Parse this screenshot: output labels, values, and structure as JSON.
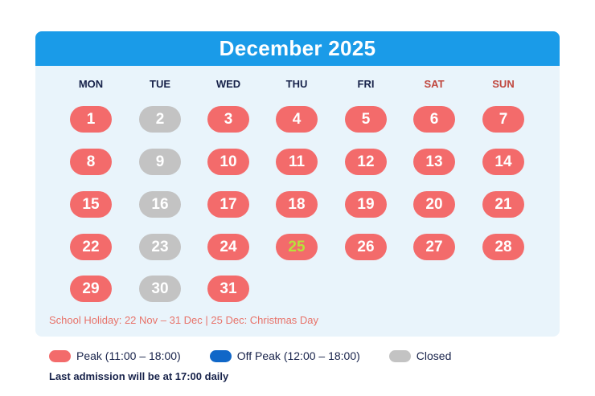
{
  "calendar": {
    "title": "December 2025",
    "weekdays": [
      {
        "label": "MON",
        "weekend": false
      },
      {
        "label": "TUE",
        "weekend": false
      },
      {
        "label": "WED",
        "weekend": false
      },
      {
        "label": "THU",
        "weekend": false
      },
      {
        "label": "FRI",
        "weekend": false
      },
      {
        "label": "SAT",
        "weekend": true
      },
      {
        "label": "SUN",
        "weekend": true
      }
    ],
    "start_weekday_index": 0,
    "days": [
      {
        "label": "1",
        "status": "peak"
      },
      {
        "label": "2",
        "status": "closed"
      },
      {
        "label": "3",
        "status": "peak"
      },
      {
        "label": "4",
        "status": "peak"
      },
      {
        "label": "5",
        "status": "peak"
      },
      {
        "label": "6",
        "status": "peak"
      },
      {
        "label": "7",
        "status": "peak"
      },
      {
        "label": "8",
        "status": "peak"
      },
      {
        "label": "9",
        "status": "closed"
      },
      {
        "label": "10",
        "status": "peak"
      },
      {
        "label": "11",
        "status": "peak"
      },
      {
        "label": "12",
        "status": "peak"
      },
      {
        "label": "13",
        "status": "peak"
      },
      {
        "label": "14",
        "status": "peak"
      },
      {
        "label": "15",
        "status": "peak"
      },
      {
        "label": "16",
        "status": "closed"
      },
      {
        "label": "17",
        "status": "peak"
      },
      {
        "label": "18",
        "status": "peak"
      },
      {
        "label": "19",
        "status": "peak"
      },
      {
        "label": "20",
        "status": "peak"
      },
      {
        "label": "21",
        "status": "peak"
      },
      {
        "label": "22",
        "status": "peak"
      },
      {
        "label": "23",
        "status": "closed"
      },
      {
        "label": "24",
        "status": "peak"
      },
      {
        "label": "25",
        "status": "peak",
        "highlight": true
      },
      {
        "label": "26",
        "status": "peak"
      },
      {
        "label": "27",
        "status": "peak"
      },
      {
        "label": "28",
        "status": "peak"
      },
      {
        "label": "29",
        "status": "peak"
      },
      {
        "label": "30",
        "status": "closed"
      },
      {
        "label": "31",
        "status": "peak"
      }
    ],
    "footnote": "School Holiday: 22 Nov – 31 Dec  |  25 Dec: Christmas Day"
  },
  "legend": [
    {
      "key": "peak",
      "label": "Peak (11:00 – 18:00)",
      "color": "#f36b6b"
    },
    {
      "key": "offpeak",
      "label": "Off Peak (12:00 – 18:00)",
      "color": "#1067c8"
    },
    {
      "key": "closed",
      "label": "Closed",
      "color": "#c3c3c3"
    }
  ],
  "last_admission": "Last admission will be at 17:00 daily",
  "colors": {
    "header_blue": "#1a9be8",
    "panel_bg": "#e9f4fb",
    "text_navy": "#17224a",
    "weekend_red": "#c0473e",
    "holiday_highlight": "#b7e23a"
  }
}
